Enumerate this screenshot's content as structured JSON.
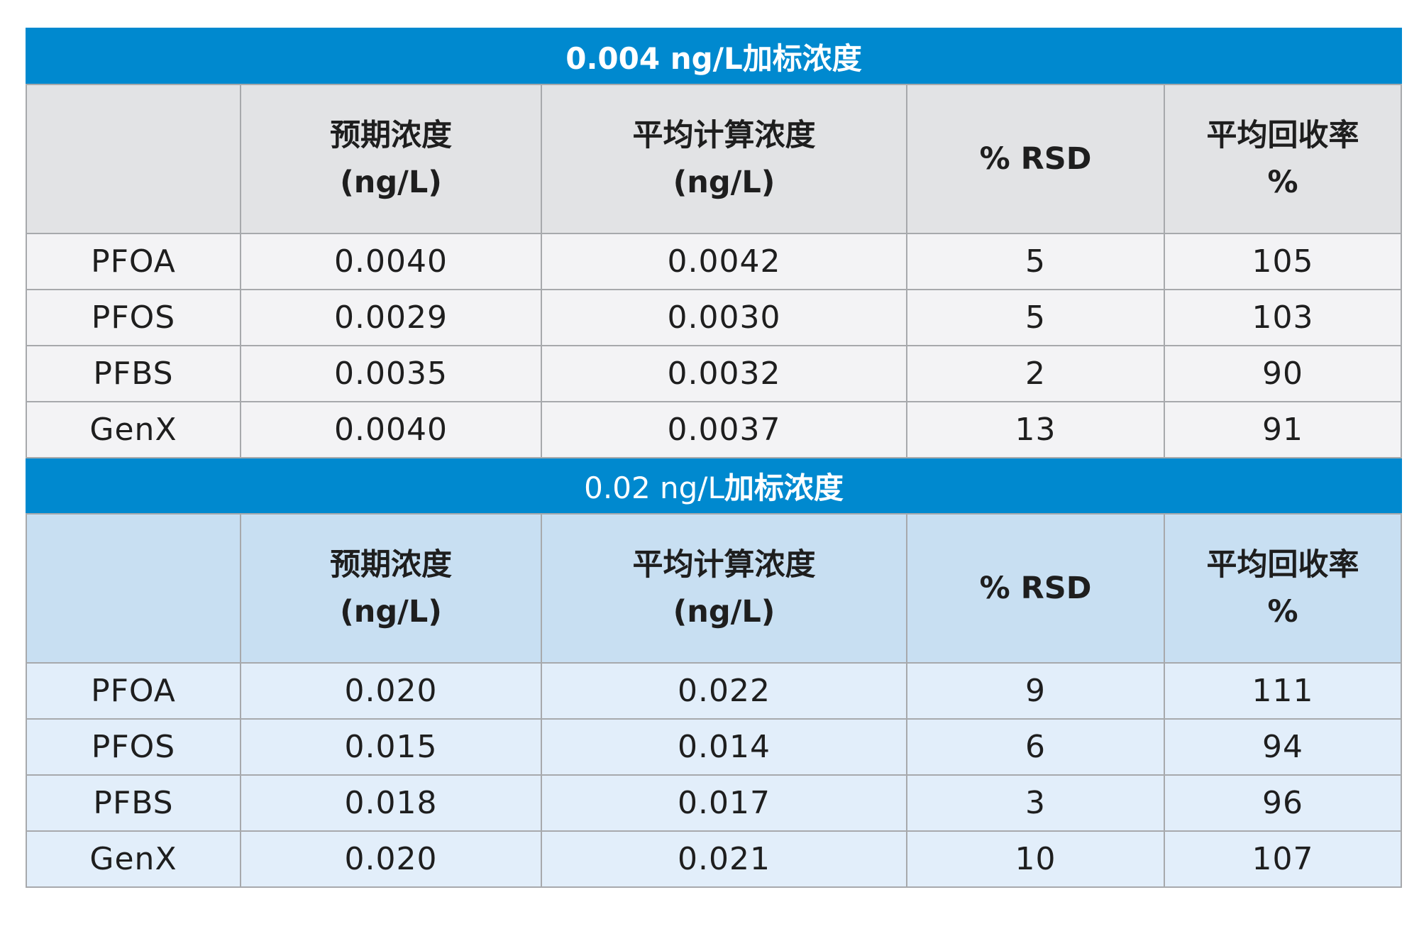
{
  "columns": [
    "",
    "预期浓度\n(ng/L)",
    "平均计算浓度\n(ng/L)",
    "% RSD",
    "平均回收率\n%"
  ],
  "sections": [
    {
      "title_prefix": "0.004 ng/L",
      "title_suffix": "加标浓度",
      "headers": {
        "c1_line1": "预期浓度",
        "c1_line2": "(ng/L)",
        "c2_line1": "平均计算浓度",
        "c2_line2": "(ng/L)",
        "c3": "% RSD",
        "c4_line1": "平均回收率",
        "c4_line2": "%"
      },
      "rows": [
        {
          "compound": "PFOA",
          "expected": "0.0040",
          "calculated": "0.0042",
          "rsd": "5",
          "recovery": "105"
        },
        {
          "compound": "PFOS",
          "expected": "0.0029",
          "calculated": "0.0030",
          "rsd": "5",
          "recovery": "103"
        },
        {
          "compound": "PFBS",
          "expected": "0.0035",
          "calculated": "0.0032",
          "rsd": "2",
          "recovery": "90"
        },
        {
          "compound": "GenX",
          "expected": "0.0040",
          "calculated": "0.0037",
          "rsd": "13",
          "recovery": "91"
        }
      ]
    },
    {
      "title_prefix": "0.02 ng/L",
      "title_suffix": "加标浓度",
      "headers": {
        "c1_line1": "预期浓度",
        "c1_line2": "(ng/L)",
        "c2_line1": "平均计算浓度",
        "c2_line2": "(ng/L)",
        "c3": "% RSD",
        "c4_line1": "平均回收率",
        "c4_line2": "%"
      },
      "rows": [
        {
          "compound": "PFOA",
          "expected": "0.020",
          "calculated": "0.022",
          "rsd": "9",
          "recovery": "111"
        },
        {
          "compound": "PFOS",
          "expected": "0.015",
          "calculated": "0.014",
          "rsd": "6",
          "recovery": "94"
        },
        {
          "compound": "PFBS",
          "expected": "0.018",
          "calculated": "0.017",
          "rsd": "3",
          "recovery": "96"
        },
        {
          "compound": "GenX",
          "expected": "0.020",
          "calculated": "0.021",
          "rsd": "10",
          "recovery": "107"
        }
      ]
    }
  ],
  "colors": {
    "section_title_bg": "#0089cf",
    "section1_header_bg": "#e2e3e5",
    "section1_row_bg": "#f3f3f5",
    "section2_header_bg": "#c8dff2",
    "section2_row_bg": "#e2eefa",
    "border": "#a7a9ac"
  }
}
